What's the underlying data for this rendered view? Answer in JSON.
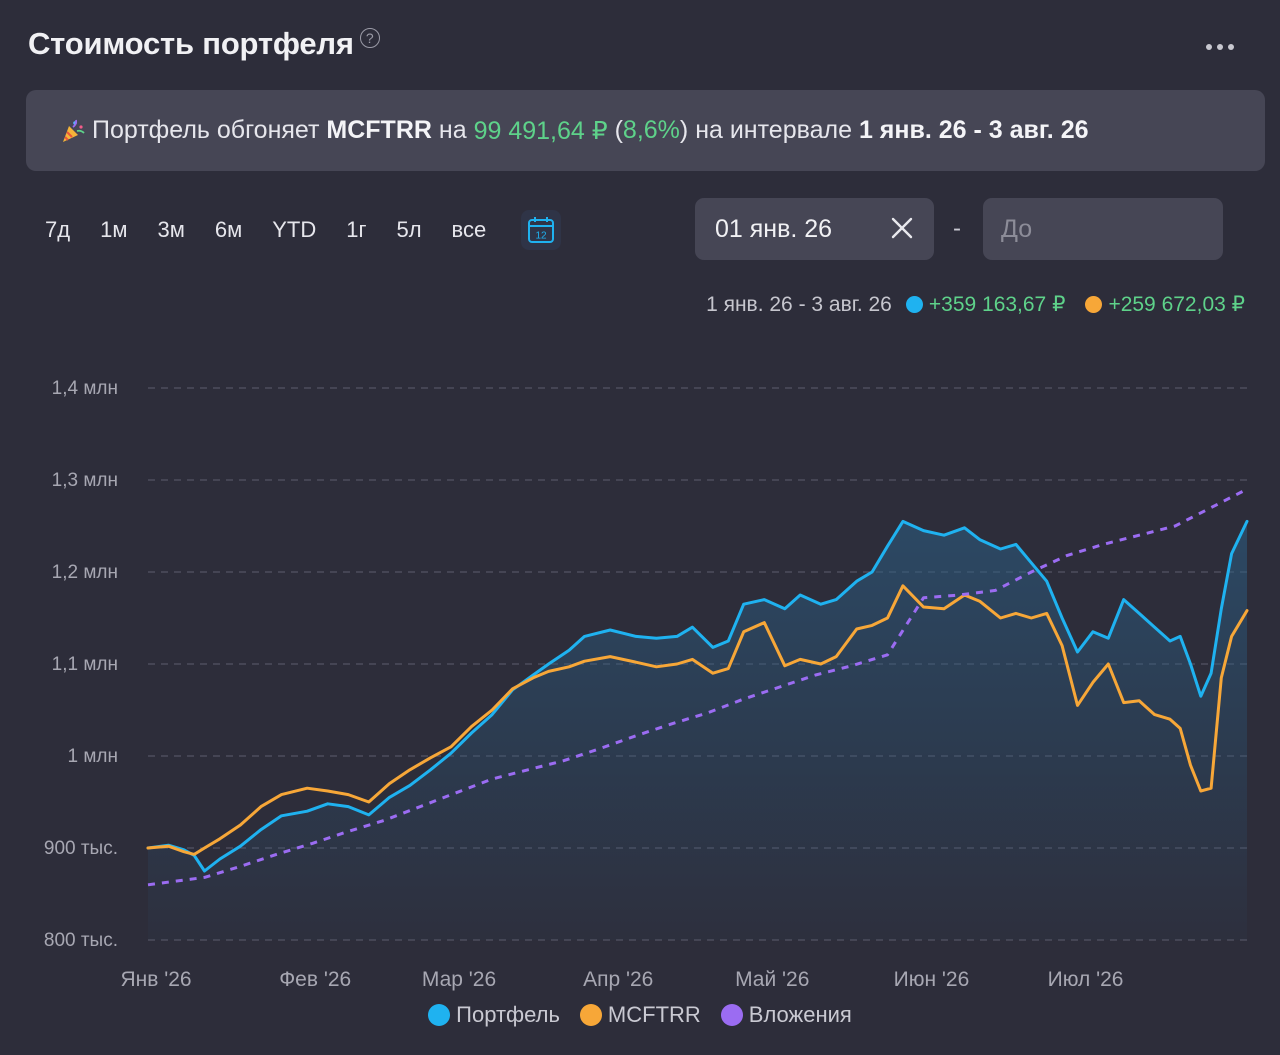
{
  "header": {
    "title": "Стоимость портфеля",
    "help_icon": "?"
  },
  "banner": {
    "prefix": "Портфель обгоняет",
    "index": "MCFTRR",
    "on": "на",
    "amount": "99 491,64 ₽",
    "pct_open": "(",
    "pct": "8,6%",
    "pct_close": ")",
    "interval_label": "на интервале",
    "interval": "1 янв. 26 - 3 авг. 26",
    "icon": "party-popper-icon"
  },
  "periods": [
    "7д",
    "1м",
    "3м",
    "6м",
    "YTD",
    "1г",
    "5л",
    "все"
  ],
  "calendar_icon_day": "12",
  "date_from": {
    "value": "01 янв. 26"
  },
  "date_separator": "-",
  "date_to": {
    "placeholder": "До"
  },
  "summary": {
    "range": "1 янв. 26 - 3 авг. 26",
    "portfolio_change": "+359 163,67 ₽",
    "index_change": "+259 672,03 ₽"
  },
  "colors": {
    "portfolio": "#1fb2f0",
    "index": "#f7a738",
    "investments": "#9b6cf2",
    "positive": "#5ed28a"
  },
  "legend": [
    "Портфель",
    "MCFTRR",
    "Вложения"
  ],
  "chart_data": {
    "type": "line",
    "xlabel": "",
    "ylabel": "",
    "ylim": [
      800000,
      1400000
    ],
    "yticks": [
      {
        "value": 1400000,
        "label": "1,4 млн"
      },
      {
        "value": 1300000,
        "label": "1,3 млн"
      },
      {
        "value": 1200000,
        "label": "1,2 млн"
      },
      {
        "value": 1100000,
        "label": "1,1 млн"
      },
      {
        "value": 1000000,
        "label": "1 млн"
      },
      {
        "value": 900000,
        "label": "900 тыс."
      },
      {
        "value": 800000,
        "label": "800 тыс."
      }
    ],
    "x_range": [
      "2026-01-01",
      "2026-08-03"
    ],
    "xticks": [
      {
        "date": "2026-01-01",
        "label": "Янв '26"
      },
      {
        "date": "2026-02-01",
        "label": "Фев '26"
      },
      {
        "date": "2026-03-01",
        "label": "Мар '26"
      },
      {
        "date": "2026-04-01",
        "label": "Апр '26"
      },
      {
        "date": "2026-05-01",
        "label": "Май '26"
      },
      {
        "date": "2026-06-01",
        "label": "Июн '26"
      },
      {
        "date": "2026-07-01",
        "label": "Июл '26"
      }
    ],
    "grid": true,
    "legend_position": "bottom",
    "series": [
      {
        "name": "Портфель",
        "color": "#1fb2f0",
        "fill": true,
        "style": "solid",
        "points": [
          [
            "2026-01-01",
            900000
          ],
          [
            "2026-01-05",
            903000
          ],
          [
            "2026-01-08",
            898000
          ],
          [
            "2026-01-10",
            892000
          ],
          [
            "2026-01-12",
            875000
          ],
          [
            "2026-01-15",
            888000
          ],
          [
            "2026-01-19",
            902000
          ],
          [
            "2026-01-23",
            920000
          ],
          [
            "2026-01-27",
            935000
          ],
          [
            "2026-02-01",
            940000
          ],
          [
            "2026-02-05",
            948000
          ],
          [
            "2026-02-09",
            945000
          ],
          [
            "2026-02-13",
            936000
          ],
          [
            "2026-02-17",
            955000
          ],
          [
            "2026-02-21",
            968000
          ],
          [
            "2026-02-25",
            985000
          ],
          [
            "2026-03-01",
            1003000
          ],
          [
            "2026-03-05",
            1025000
          ],
          [
            "2026-03-09",
            1045000
          ],
          [
            "2026-03-13",
            1072000
          ],
          [
            "2026-03-17",
            1088000
          ],
          [
            "2026-03-20",
            1100000
          ],
          [
            "2026-03-24",
            1115000
          ],
          [
            "2026-03-27",
            1130000
          ],
          [
            "2026-04-01",
            1137000
          ],
          [
            "2026-04-06",
            1130000
          ],
          [
            "2026-04-10",
            1128000
          ],
          [
            "2026-04-14",
            1130000
          ],
          [
            "2026-04-17",
            1140000
          ],
          [
            "2026-04-21",
            1118000
          ],
          [
            "2026-04-24",
            1125000
          ],
          [
            "2026-04-27",
            1165000
          ],
          [
            "2026-05-01",
            1170000
          ],
          [
            "2026-05-05",
            1160000
          ],
          [
            "2026-05-08",
            1175000
          ],
          [
            "2026-05-12",
            1165000
          ],
          [
            "2026-05-15",
            1170000
          ],
          [
            "2026-05-19",
            1190000
          ],
          [
            "2026-05-22",
            1200000
          ],
          [
            "2026-05-25",
            1228000
          ],
          [
            "2026-05-28",
            1255000
          ],
          [
            "2026-06-01",
            1245000
          ],
          [
            "2026-06-05",
            1240000
          ],
          [
            "2026-06-09",
            1248000
          ],
          [
            "2026-06-12",
            1235000
          ],
          [
            "2026-06-16",
            1225000
          ],
          [
            "2026-06-19",
            1230000
          ],
          [
            "2026-06-22",
            1210000
          ],
          [
            "2026-06-25",
            1190000
          ],
          [
            "2026-06-28",
            1150000
          ],
          [
            "2026-07-01",
            1113000
          ],
          [
            "2026-07-04",
            1135000
          ],
          [
            "2026-07-07",
            1128000
          ],
          [
            "2026-07-10",
            1170000
          ],
          [
            "2026-07-13",
            1155000
          ],
          [
            "2026-07-16",
            1140000
          ],
          [
            "2026-07-19",
            1125000
          ],
          [
            "2026-07-21",
            1130000
          ],
          [
            "2026-07-23",
            1100000
          ],
          [
            "2026-07-25",
            1065000
          ],
          [
            "2026-07-27",
            1090000
          ],
          [
            "2026-07-29",
            1160000
          ],
          [
            "2026-07-31",
            1220000
          ],
          [
            "2026-08-03",
            1255000
          ]
        ]
      },
      {
        "name": "MCFTRR",
        "color": "#f7a738",
        "fill": false,
        "style": "solid",
        "points": [
          [
            "2026-01-01",
            900000
          ],
          [
            "2026-01-05",
            902000
          ],
          [
            "2026-01-08",
            896000
          ],
          [
            "2026-01-10",
            893000
          ],
          [
            "2026-01-12",
            900000
          ],
          [
            "2026-01-15",
            910000
          ],
          [
            "2026-01-19",
            925000
          ],
          [
            "2026-01-23",
            945000
          ],
          [
            "2026-01-27",
            958000
          ],
          [
            "2026-02-01",
            965000
          ],
          [
            "2026-02-05",
            962000
          ],
          [
            "2026-02-09",
            958000
          ],
          [
            "2026-02-13",
            950000
          ],
          [
            "2026-02-17",
            970000
          ],
          [
            "2026-02-21",
            985000
          ],
          [
            "2026-02-25",
            998000
          ],
          [
            "2026-03-01",
            1010000
          ],
          [
            "2026-03-05",
            1032000
          ],
          [
            "2026-03-09",
            1050000
          ],
          [
            "2026-03-13",
            1073000
          ],
          [
            "2026-03-17",
            1085000
          ],
          [
            "2026-03-20",
            1092000
          ],
          [
            "2026-03-24",
            1097000
          ],
          [
            "2026-03-27",
            1103000
          ],
          [
            "2026-04-01",
            1108000
          ],
          [
            "2026-04-06",
            1102000
          ],
          [
            "2026-04-10",
            1097000
          ],
          [
            "2026-04-14",
            1100000
          ],
          [
            "2026-04-17",
            1105000
          ],
          [
            "2026-04-21",
            1090000
          ],
          [
            "2026-04-24",
            1095000
          ],
          [
            "2026-04-27",
            1135000
          ],
          [
            "2026-05-01",
            1145000
          ],
          [
            "2026-05-05",
            1098000
          ],
          [
            "2026-05-08",
            1105000
          ],
          [
            "2026-05-12",
            1100000
          ],
          [
            "2026-05-15",
            1108000
          ],
          [
            "2026-05-19",
            1138000
          ],
          [
            "2026-05-22",
            1142000
          ],
          [
            "2026-05-25",
            1150000
          ],
          [
            "2026-05-28",
            1185000
          ],
          [
            "2026-06-01",
            1162000
          ],
          [
            "2026-06-05",
            1160000
          ],
          [
            "2026-06-09",
            1175000
          ],
          [
            "2026-06-12",
            1168000
          ],
          [
            "2026-06-16",
            1150000
          ],
          [
            "2026-06-19",
            1155000
          ],
          [
            "2026-06-22",
            1150000
          ],
          [
            "2026-06-25",
            1155000
          ],
          [
            "2026-06-28",
            1120000
          ],
          [
            "2026-07-01",
            1055000
          ],
          [
            "2026-07-04",
            1080000
          ],
          [
            "2026-07-07",
            1100000
          ],
          [
            "2026-07-10",
            1058000
          ],
          [
            "2026-07-13",
            1060000
          ],
          [
            "2026-07-16",
            1045000
          ],
          [
            "2026-07-19",
            1040000
          ],
          [
            "2026-07-21",
            1030000
          ],
          [
            "2026-07-23",
            990000
          ],
          [
            "2026-07-25",
            962000
          ],
          [
            "2026-07-27",
            965000
          ],
          [
            "2026-07-29",
            1085000
          ],
          [
            "2026-07-31",
            1130000
          ],
          [
            "2026-08-03",
            1158000
          ]
        ]
      },
      {
        "name": "Вложения",
        "color": "#9b6cf2",
        "fill": false,
        "style": "dashed",
        "points": [
          [
            "2026-01-01",
            860000
          ],
          [
            "2026-01-12",
            868000
          ],
          [
            "2026-01-19",
            880000
          ],
          [
            "2026-01-26",
            893000
          ],
          [
            "2026-02-02",
            905000
          ],
          [
            "2026-02-09",
            918000
          ],
          [
            "2026-02-16",
            930000
          ],
          [
            "2026-02-23",
            945000
          ],
          [
            "2026-03-02",
            960000
          ],
          [
            "2026-03-09",
            975000
          ],
          [
            "2026-03-16",
            985000
          ],
          [
            "2026-03-23",
            995000
          ],
          [
            "2026-03-30",
            1008000
          ],
          [
            "2026-04-06",
            1022000
          ],
          [
            "2026-04-13",
            1035000
          ],
          [
            "2026-04-20",
            1047000
          ],
          [
            "2026-04-27",
            1062000
          ],
          [
            "2026-05-04",
            1075000
          ],
          [
            "2026-05-11",
            1088000
          ],
          [
            "2026-05-18",
            1098000
          ],
          [
            "2026-05-25",
            1110000
          ],
          [
            "2026-06-01",
            1172000
          ],
          [
            "2026-06-08",
            1175000
          ],
          [
            "2026-06-15",
            1180000
          ],
          [
            "2026-06-22",
            1200000
          ],
          [
            "2026-06-29",
            1218000
          ],
          [
            "2026-07-06",
            1230000
          ],
          [
            "2026-07-13",
            1240000
          ],
          [
            "2026-07-20",
            1250000
          ],
          [
            "2026-07-27",
            1270000
          ],
          [
            "2026-08-03",
            1290000
          ]
        ]
      }
    ]
  }
}
